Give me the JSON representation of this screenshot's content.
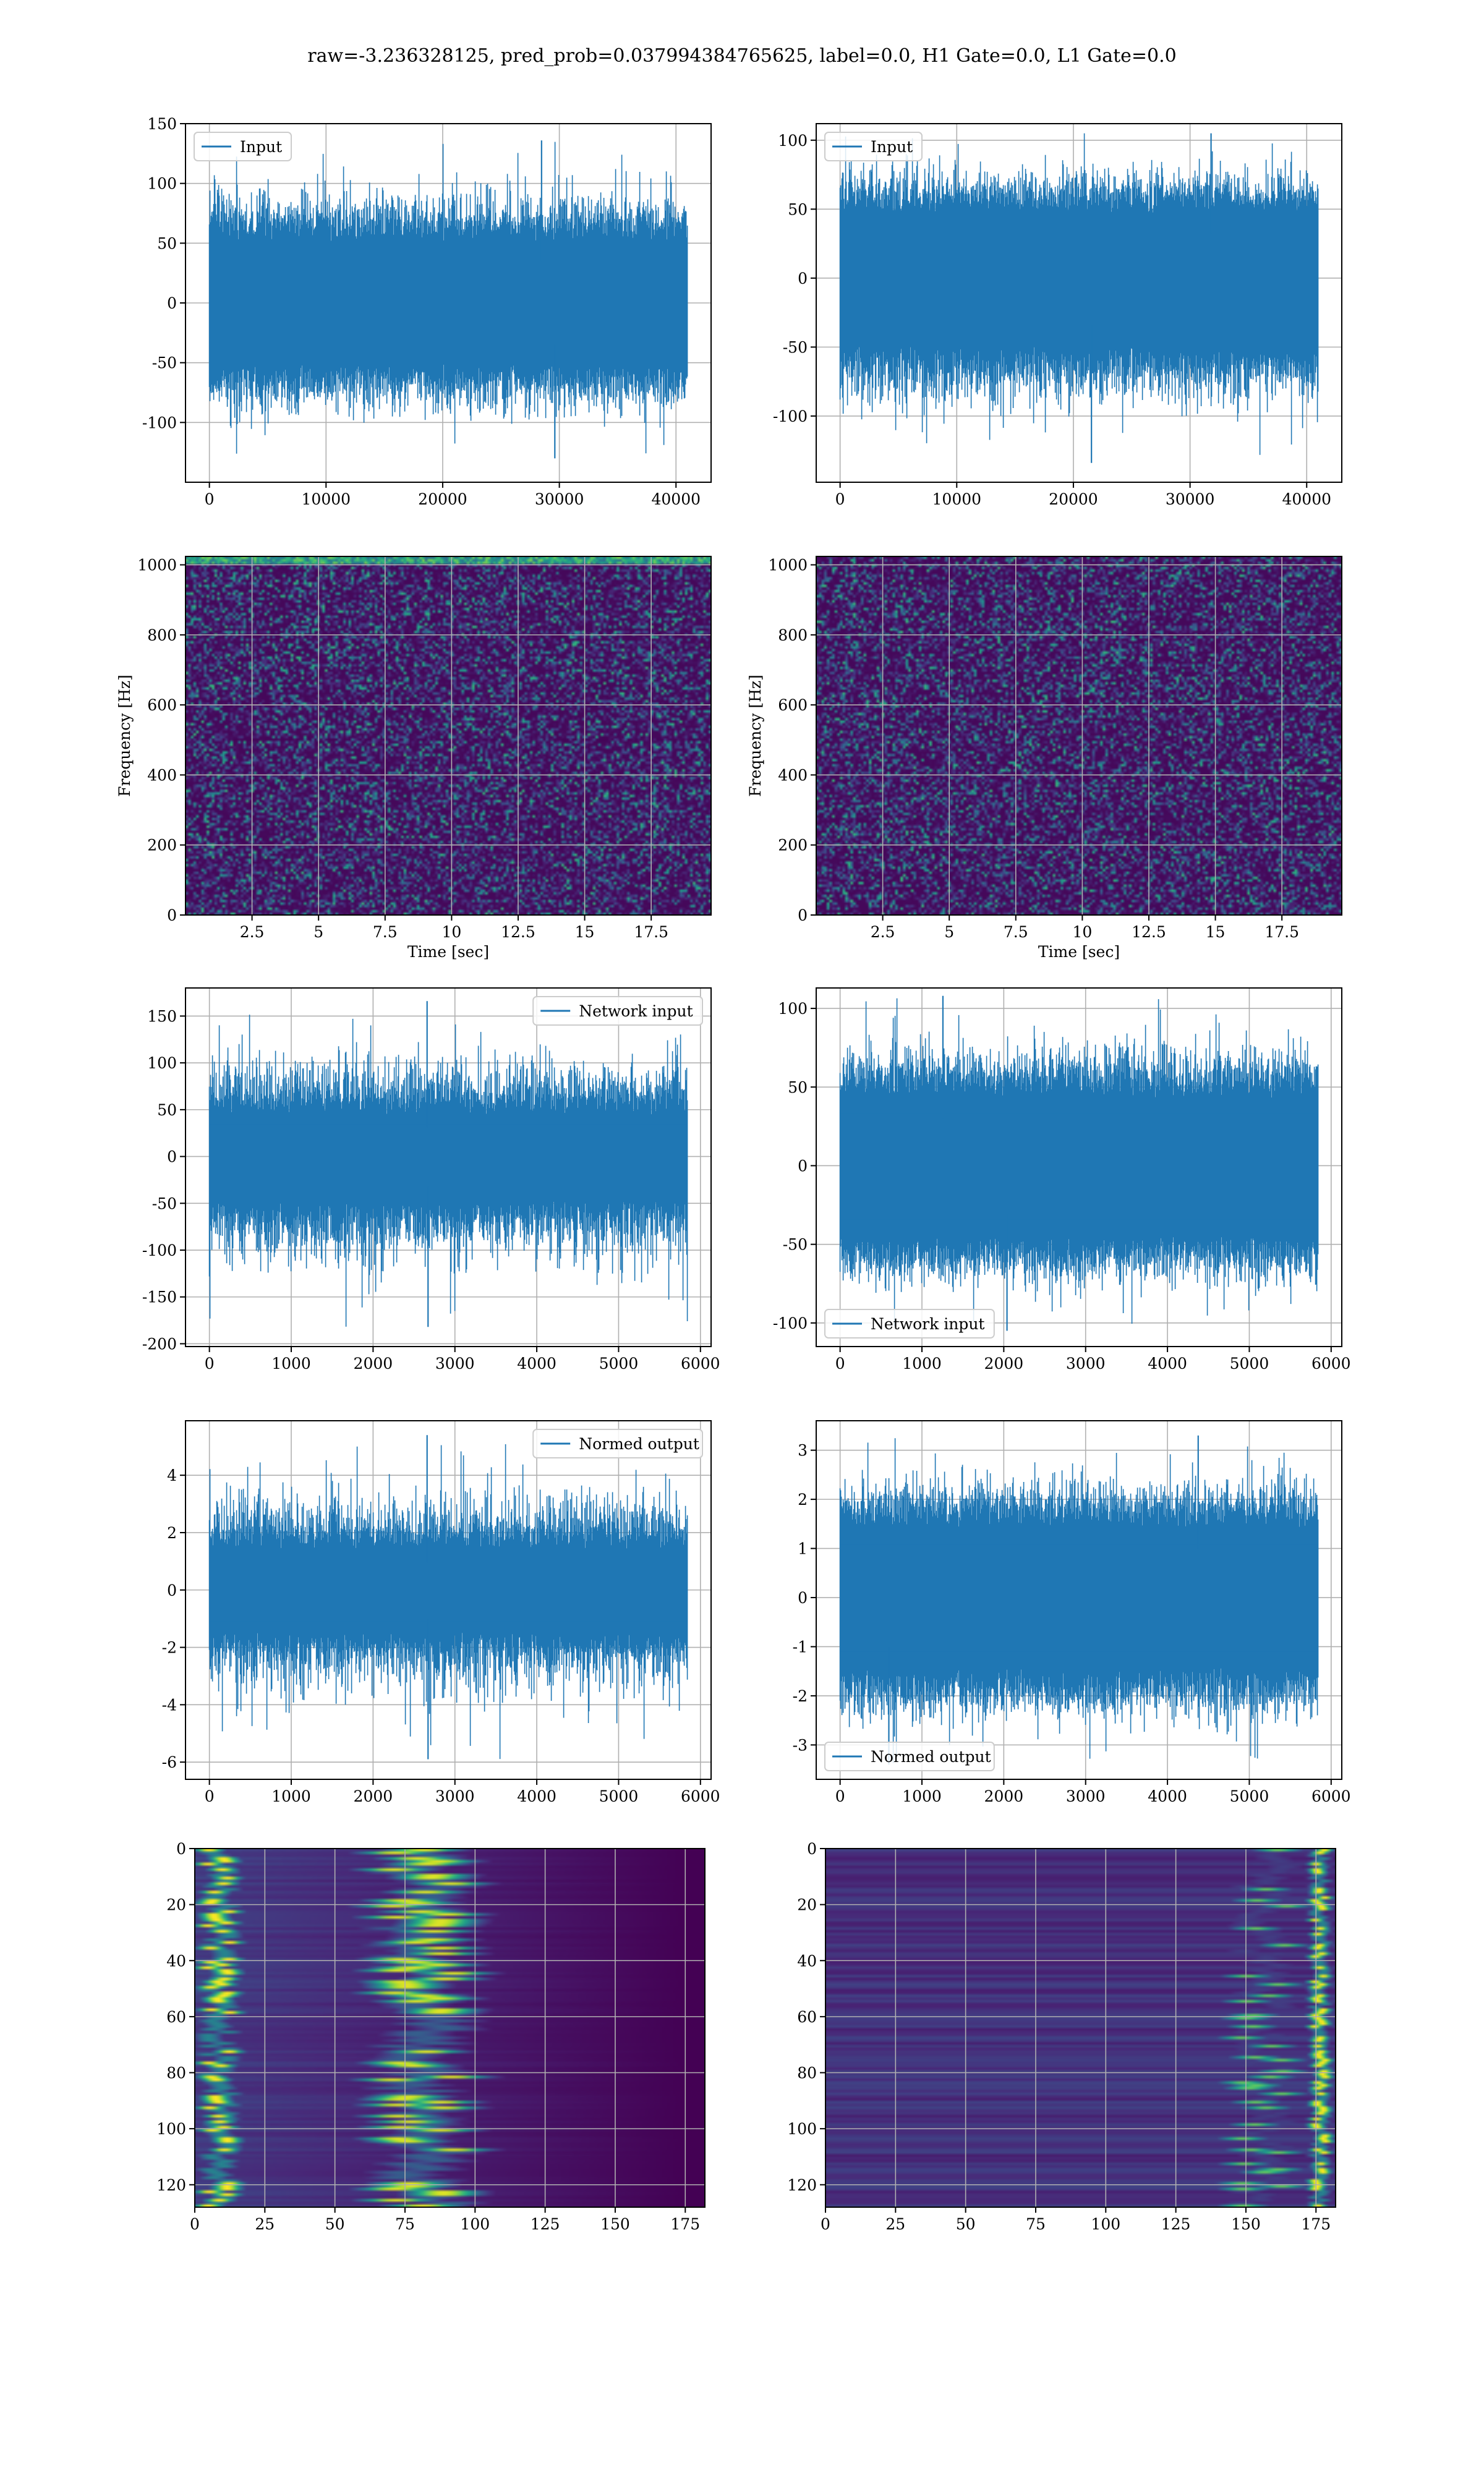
{
  "figure": {
    "title": "raw=-3.236328125, pred_prob=0.037994384765625, label=0.0, H1 Gate=0.0, L1 Gate=0.0"
  },
  "colors": {
    "line": "#1f77b4",
    "grid": "#b0b0b0",
    "viridis": [
      "#440154",
      "#482878",
      "#3e4989",
      "#31688e",
      "#26828e",
      "#1f9e89",
      "#35b779",
      "#6ece58",
      "#b5de2b",
      "#fde725"
    ]
  },
  "chart_data": [
    {
      "id": "input-h1",
      "type": "line",
      "series": [
        {
          "name": "Input"
        }
      ],
      "legend": "top-left",
      "xlim": [
        -2048,
        43008
      ],
      "ylim": [
        -150,
        150
      ],
      "xticks": [
        0,
        10000,
        20000,
        30000,
        40000
      ],
      "yticks": [
        -100,
        -50,
        0,
        50,
        100,
        150
      ],
      "n_samples": 40960,
      "envelope": {
        "upper": 70,
        "lower": -70,
        "max": 136,
        "min": -130
      },
      "grid": true
    },
    {
      "id": "input-l1",
      "type": "line",
      "series": [
        {
          "name": "Input"
        }
      ],
      "legend": "top-left",
      "xlim": [
        -2048,
        43008
      ],
      "ylim": [
        -148,
        112
      ],
      "xticks": [
        0,
        10000,
        20000,
        30000,
        40000
      ],
      "yticks": [
        -100,
        -50,
        0,
        50,
        100
      ],
      "n_samples": 40960,
      "envelope": {
        "upper": 65,
        "lower": -68,
        "max": 105,
        "min": -134
      },
      "grid": true
    },
    {
      "id": "spectrogram-h1",
      "type": "heatmap",
      "xlabel": "Time [sec]",
      "ylabel": "Frequency [Hz]",
      "xlim": [
        0,
        19.75
      ],
      "ylim": [
        0,
        1024
      ],
      "xticks": [
        2.5,
        5.0,
        7.5,
        10.0,
        12.5,
        15.0,
        17.5
      ],
      "yticks": [
        0,
        200,
        400,
        600,
        800,
        1000
      ],
      "bright_band_hz": 1015,
      "grid": true
    },
    {
      "id": "spectrogram-l1",
      "type": "heatmap",
      "xlabel": "Time [sec]",
      "ylabel": "Frequency [Hz]",
      "xlim": [
        0,
        19.75
      ],
      "ylim": [
        0,
        1024
      ],
      "xticks": [
        2.5,
        5.0,
        7.5,
        10.0,
        12.5,
        15.0,
        17.5
      ],
      "yticks": [
        0,
        200,
        400,
        600,
        800,
        1000
      ],
      "grid": true
    },
    {
      "id": "network-input-h1",
      "type": "line",
      "series": [
        {
          "name": "Network input"
        }
      ],
      "legend": "top-right",
      "xlim": [
        -292,
        6130
      ],
      "ylim": [
        -203,
        180
      ],
      "xticks": [
        0,
        1000,
        2000,
        3000,
        4000,
        5000,
        6000
      ],
      "yticks": [
        -200,
        -150,
        -100,
        -50,
        0,
        50,
        100,
        150
      ],
      "n_samples": 5838,
      "envelope": {
        "upper": 62,
        "lower": -65,
        "max": 166,
        "min": -182
      },
      "spike_x": 2660,
      "grid": true
    },
    {
      "id": "network-input-l1",
      "type": "line",
      "series": [
        {
          "name": "Network input"
        }
      ],
      "legend": "bottom-left",
      "xlim": [
        -292,
        6130
      ],
      "ylim": [
        -115,
        113
      ],
      "xticks": [
        0,
        1000,
        2000,
        3000,
        4000,
        5000,
        6000
      ],
      "yticks": [
        -100,
        -50,
        0,
        50,
        100
      ],
      "n_samples": 5838,
      "envelope": {
        "upper": 60,
        "lower": -62,
        "max": 108,
        "min": -105
      },
      "grid": true
    },
    {
      "id": "normed-output-h1",
      "type": "line",
      "series": [
        {
          "name": "Normed output"
        }
      ],
      "legend": "top-right",
      "xlim": [
        -292,
        6130
      ],
      "ylim": [
        -6.6,
        5.9
      ],
      "xticks": [
        0,
        1000,
        2000,
        3000,
        4000,
        5000,
        6000
      ],
      "yticks": [
        -6,
        -4,
        -2,
        0,
        2,
        4
      ],
      "n_samples": 5838,
      "envelope": {
        "upper": 1.9,
        "lower": -2.0,
        "max": 5.4,
        "min": -5.9
      },
      "spike_x": 2660,
      "grid": true
    },
    {
      "id": "normed-output-l1",
      "type": "line",
      "series": [
        {
          "name": "Normed output"
        }
      ],
      "legend": "bottom-left",
      "xlim": [
        -292,
        6130
      ],
      "ylim": [
        -3.7,
        3.6
      ],
      "xticks": [
        0,
        1000,
        2000,
        3000,
        4000,
        5000,
        6000
      ],
      "yticks": [
        -3,
        -2,
        -1,
        0,
        1,
        2,
        3
      ],
      "n_samples": 5838,
      "envelope": {
        "upper": 1.95,
        "lower": -2.0,
        "max": 3.3,
        "min": -3.4
      },
      "grid": true
    },
    {
      "id": "feature-map-h1",
      "type": "heatmap",
      "xlim": [
        0,
        182
      ],
      "ylim": [
        128,
        0
      ],
      "xticks": [
        0,
        25,
        50,
        75,
        100,
        125,
        150,
        175
      ],
      "yticks": [
        0,
        20,
        40,
        60,
        80,
        100,
        120
      ],
      "rows": 128,
      "cols": 182,
      "active_region": "left",
      "grid": true
    },
    {
      "id": "feature-map-l1",
      "type": "heatmap",
      "xlim": [
        0,
        182
      ],
      "ylim": [
        128,
        0
      ],
      "xticks": [
        0,
        25,
        50,
        75,
        100,
        125,
        150,
        175
      ],
      "yticks": [
        0,
        20,
        40,
        60,
        80,
        100,
        120
      ],
      "rows": 128,
      "cols": 182,
      "active_region": "right",
      "grid": true
    }
  ]
}
